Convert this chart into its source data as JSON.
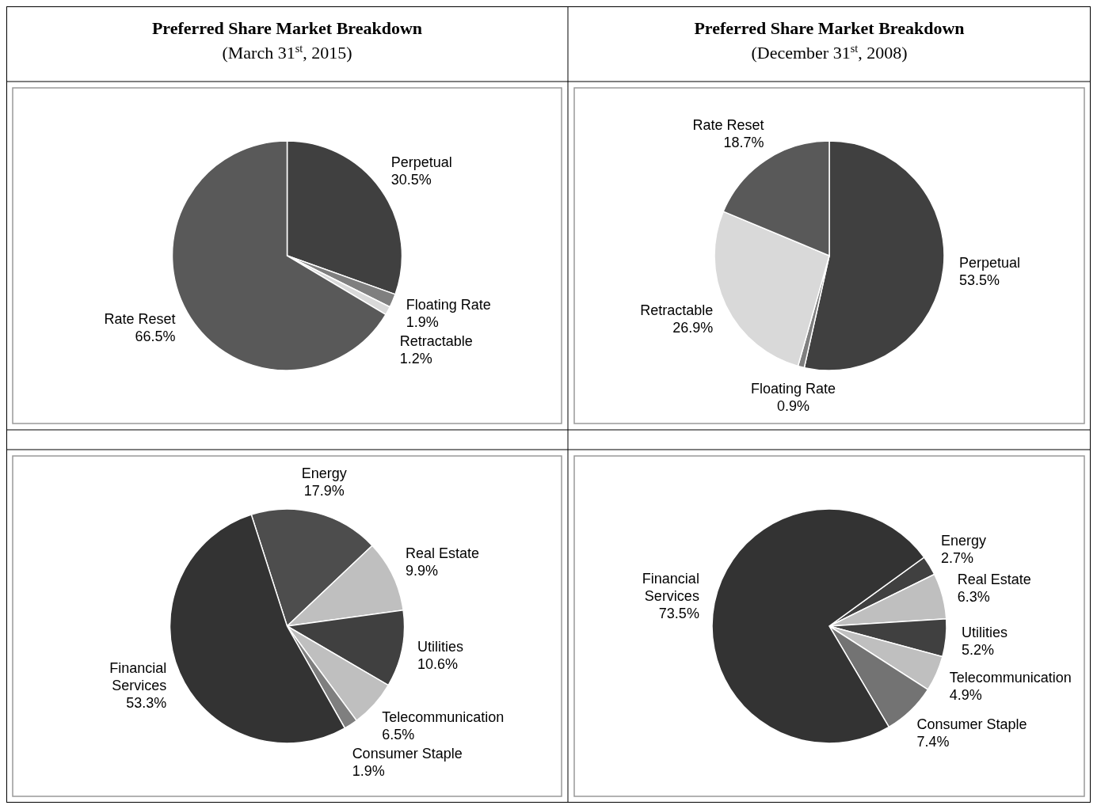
{
  "chart_data": [
    {
      "type": "pie",
      "title": "Preferred Share Market Breakdown",
      "subtitle": "(March 31$^{st}$, 2015)",
      "categories": [
        "Perpetual",
        "Floating Rate",
        "Retractable",
        "Rate Reset"
      ],
      "values": [
        30.5,
        1.9,
        1.2,
        66.5
      ],
      "value_labels": [
        "30.5%",
        "1.9%",
        "1.2%",
        "66.5%"
      ],
      "colors": [
        "#404040",
        "#7f7f7f",
        "#d9d9d9",
        "#595959"
      ]
    },
    {
      "type": "pie",
      "title": "Preferred Share Market Breakdown",
      "subtitle": "(December 31$^{st}$, 2008)",
      "categories": [
        "Perpetual",
        "Floating Rate",
        "Retractable",
        "Rate Reset"
      ],
      "values": [
        53.5,
        0.9,
        26.9,
        18.7
      ],
      "value_labels": [
        "53.5%",
        "0.9%",
        "26.9%",
        "18.7%"
      ],
      "colors": [
        "#404040",
        "#7f7f7f",
        "#d9d9d9",
        "#595959"
      ]
    },
    {
      "type": "pie",
      "categories": [
        "Energy",
        "Real Estate",
        "Utilities",
        "Telecommunication",
        "Consumer Staple",
        "Financial Services"
      ],
      "values": [
        17.9,
        9.9,
        10.6,
        6.5,
        1.9,
        53.3
      ],
      "value_labels": [
        "17.9%",
        "9.9%",
        "10.6%",
        "6.5%",
        "1.9%",
        "53.3%"
      ],
      "colors": [
        "#4d4d4d",
        "#bfbfbf",
        "#404040",
        "#bfbfbf",
        "#7f7f7f",
        "#333333"
      ]
    },
    {
      "type": "pie",
      "categories": [
        "Energy",
        "Real Estate",
        "Utilities",
        "Telecommunication",
        "Consumer Staple",
        "Financial Services"
      ],
      "values": [
        2.7,
        6.3,
        5.2,
        4.9,
        7.4,
        73.5
      ],
      "value_labels": [
        "2.7%",
        "6.3%",
        "5.2%",
        "4.9%",
        "7.4%",
        "73.5%"
      ],
      "colors": [
        "#404040",
        "#bfbfbf",
        "#404040",
        "#bfbfbf",
        "#737373",
        "#333333"
      ]
    }
  ]
}
